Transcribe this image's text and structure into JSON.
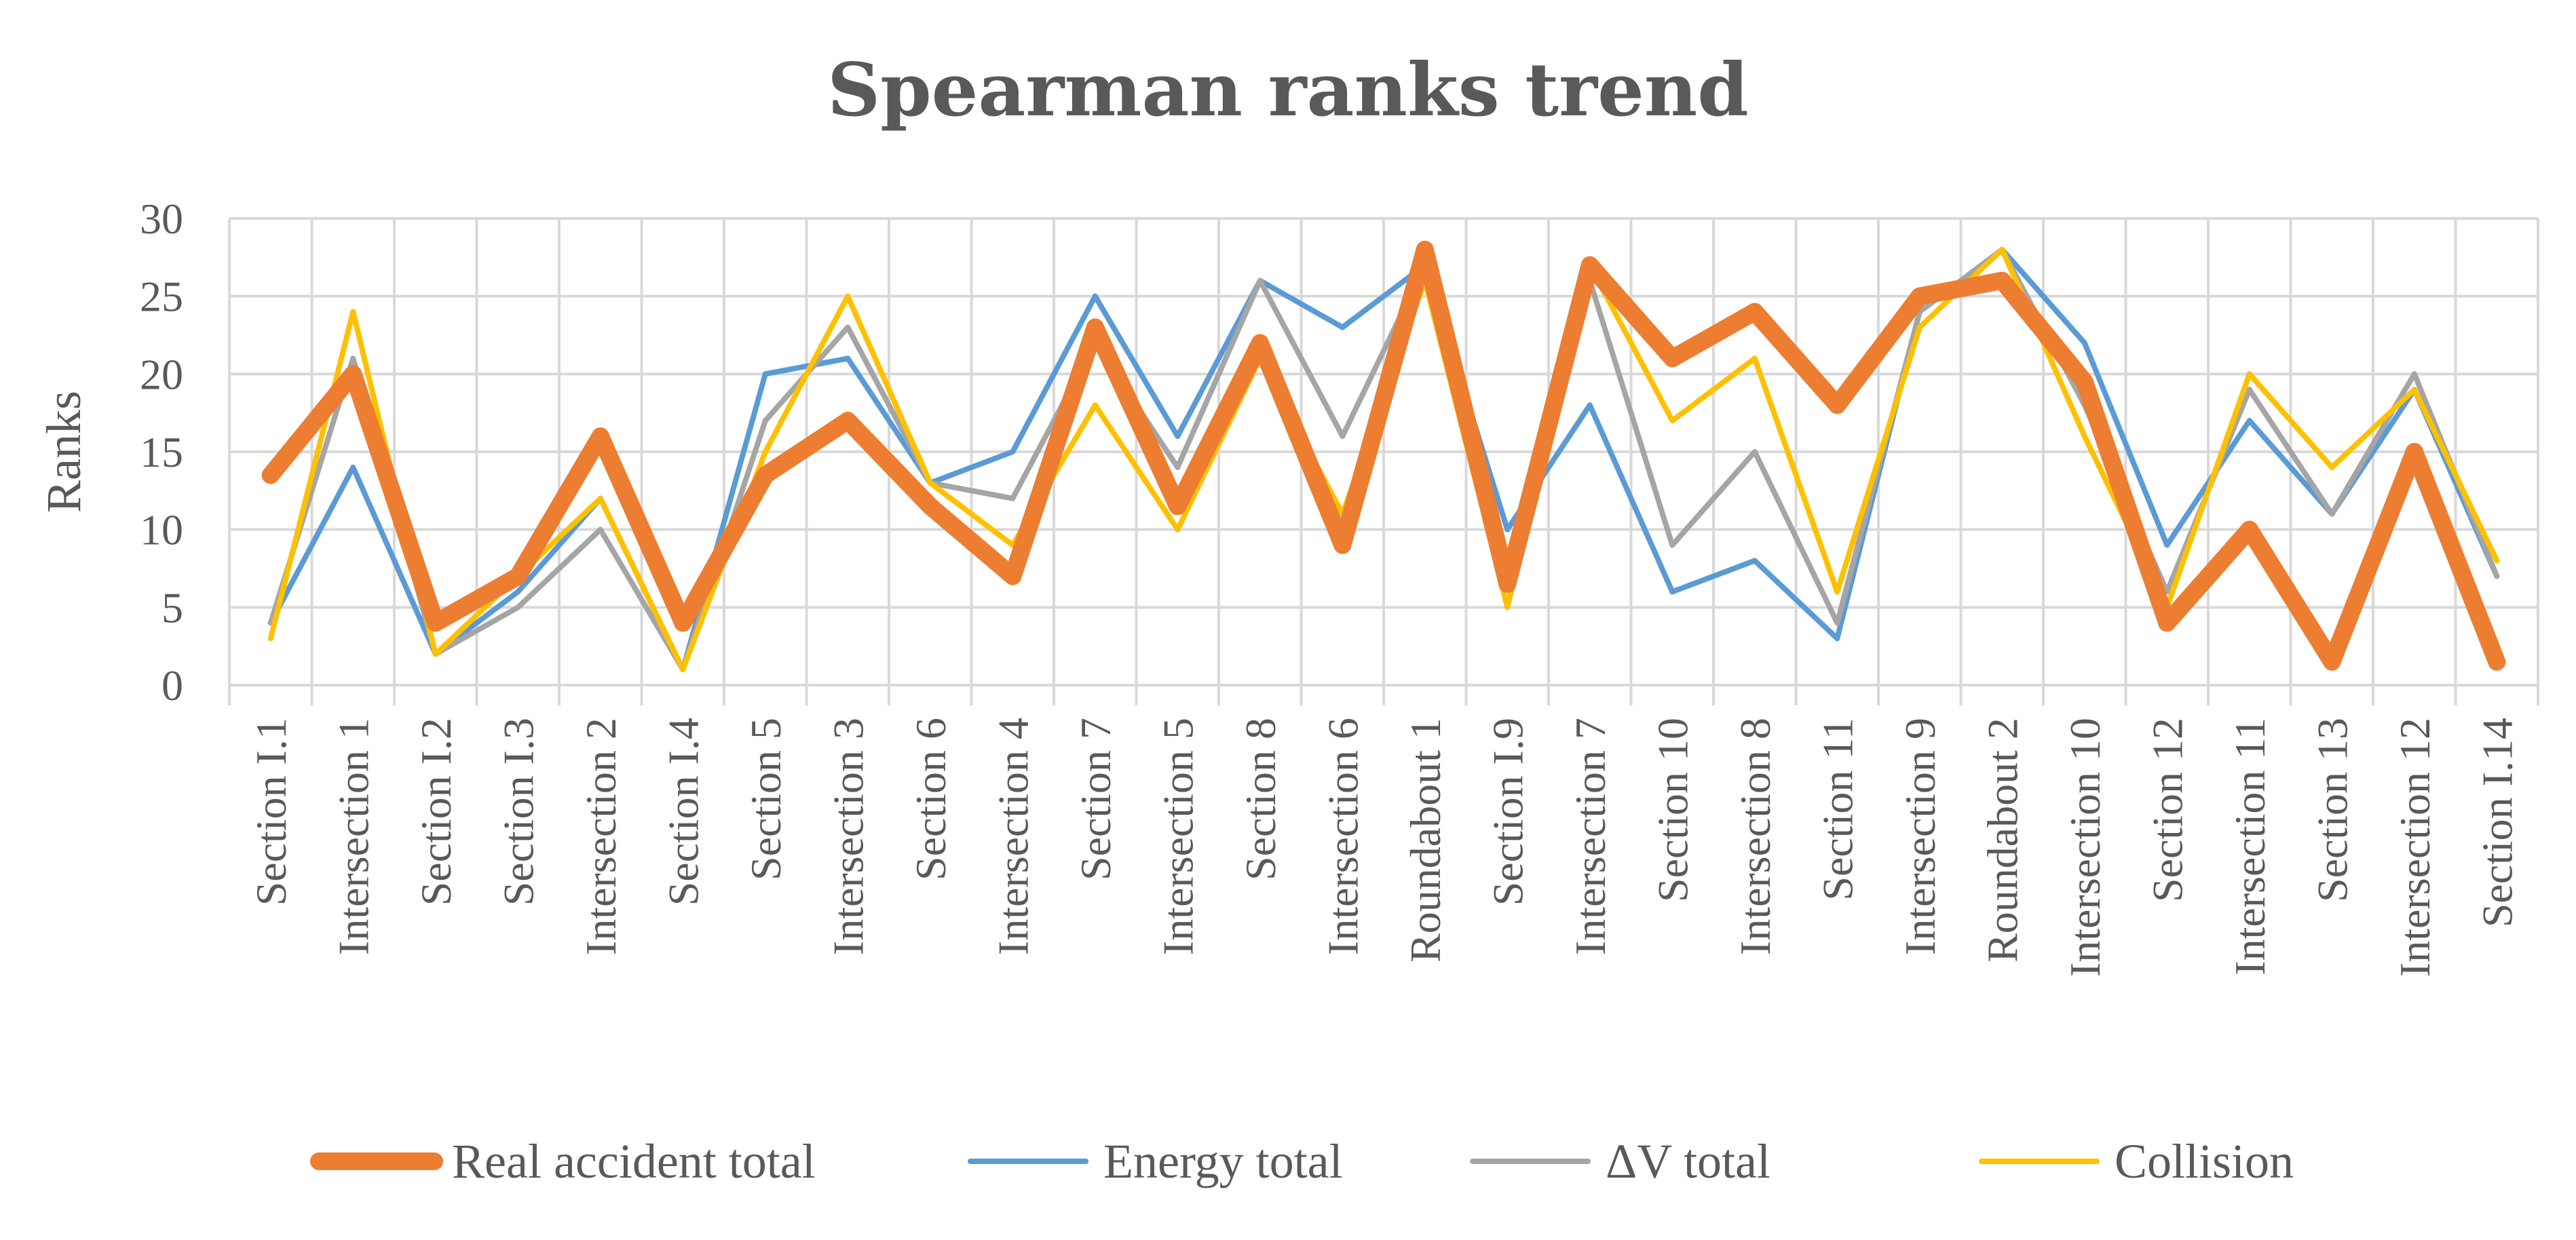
{
  "chart_data": {
    "type": "line",
    "title": "Spearman ranks trend",
    "xlabel": "",
    "ylabel": "Ranks",
    "ylim": [
      0,
      30
    ],
    "yticks": [
      0,
      5,
      10,
      15,
      20,
      25,
      30
    ],
    "grid": true,
    "legend_position": "bottom",
    "categories": [
      "Section I.1",
      "Intersection 1",
      "Section I.2",
      "Section I.3",
      "Intersection 2",
      "Section I.4",
      "Section 5",
      "Intersection 3",
      "Section 6",
      "Intersection 4",
      "Section 7",
      "Intersection 5",
      "Section 8",
      "Intersection 6",
      "Roundabout 1",
      "Section I.9",
      "Intersection 7",
      "Section 10",
      "Intersection 8",
      "Section 11",
      "Intersection 9",
      "Roundabout 2",
      "Intersection 10",
      "Section 12",
      "Intersection 11",
      "Section 13",
      "Intersection 12",
      "Section I.14"
    ],
    "series": [
      {
        "name": "Real accident total",
        "color": "#ED7D31",
        "width": 26,
        "values": [
          13.5,
          20,
          4,
          7,
          16,
          4,
          13.5,
          17,
          11.5,
          7,
          23,
          11.5,
          22,
          9,
          28,
          6.5,
          27,
          21,
          24,
          18,
          25,
          26,
          19.5,
          4,
          10,
          1.5,
          15,
          1.5
        ]
      },
      {
        "name": "Energy total",
        "color": "#5B9BD5",
        "width": 8,
        "values": [
          4,
          14,
          2,
          6,
          12,
          1,
          20,
          21,
          13,
          15,
          25,
          16,
          26,
          23,
          27,
          10,
          18,
          6,
          8,
          3,
          24,
          28,
          22,
          9,
          17,
          11,
          19,
          7
        ]
      },
      {
        "name": "ΔV total",
        "color": "#A5A5A5",
        "width": 8,
        "values": [
          4,
          21,
          2,
          5,
          10,
          1,
          17,
          23,
          13,
          12,
          22,
          14,
          26,
          16,
          27,
          8,
          26,
          9,
          15,
          4,
          24,
          28,
          18,
          6,
          19,
          11,
          20,
          7
        ]
      },
      {
        "name": "Collision",
        "color": "#FFC000",
        "width": 8,
        "values": [
          3,
          24,
          2,
          7,
          12,
          1,
          15,
          25,
          13,
          9,
          18,
          10,
          21,
          11,
          26,
          5,
          27,
          17,
          21,
          6,
          23,
          28,
          16,
          5,
          20,
          14,
          19,
          8
        ]
      }
    ]
  }
}
